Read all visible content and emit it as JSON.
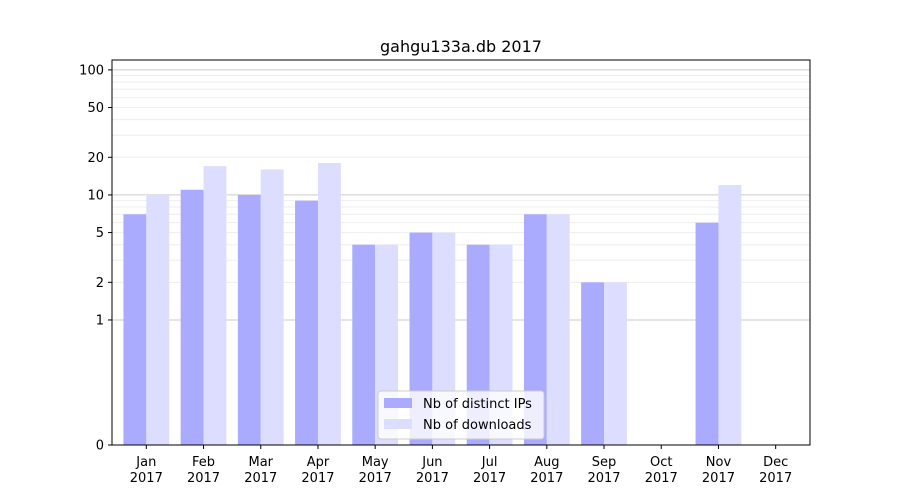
{
  "chart_data": {
    "type": "bar",
    "title": "gahgu133a.db 2017",
    "xlabel": "",
    "ylabel": "",
    "scale": "symlog",
    "categories": [
      [
        "Jan",
        "2017"
      ],
      [
        "Feb",
        "2017"
      ],
      [
        "Mar",
        "2017"
      ],
      [
        "Apr",
        "2017"
      ],
      [
        "May",
        "2017"
      ],
      [
        "Jun",
        "2017"
      ],
      [
        "Jul",
        "2017"
      ],
      [
        "Aug",
        "2017"
      ],
      [
        "Sep",
        "2017"
      ],
      [
        "Oct",
        "2017"
      ],
      [
        "Nov",
        "2017"
      ],
      [
        "Dec",
        "2017"
      ]
    ],
    "series": [
      {
        "name": "Nb of distinct IPs",
        "color": "#aaaaff",
        "values": [
          7,
          11,
          10,
          9,
          4,
          5,
          4,
          7,
          2,
          0,
          6,
          0
        ]
      },
      {
        "name": "Nb of downloads",
        "color": "#ddddff",
        "values": [
          10,
          17,
          16,
          18,
          4,
          5,
          4,
          7,
          2,
          0,
          12,
          0
        ]
      }
    ],
    "yticks": [
      "0",
      "1",
      "2",
      "5",
      "10",
      "20",
      "50",
      "100"
    ],
    "ylim": [
      0,
      120
    ],
    "grid": true,
    "legend": "bottom-center"
  }
}
